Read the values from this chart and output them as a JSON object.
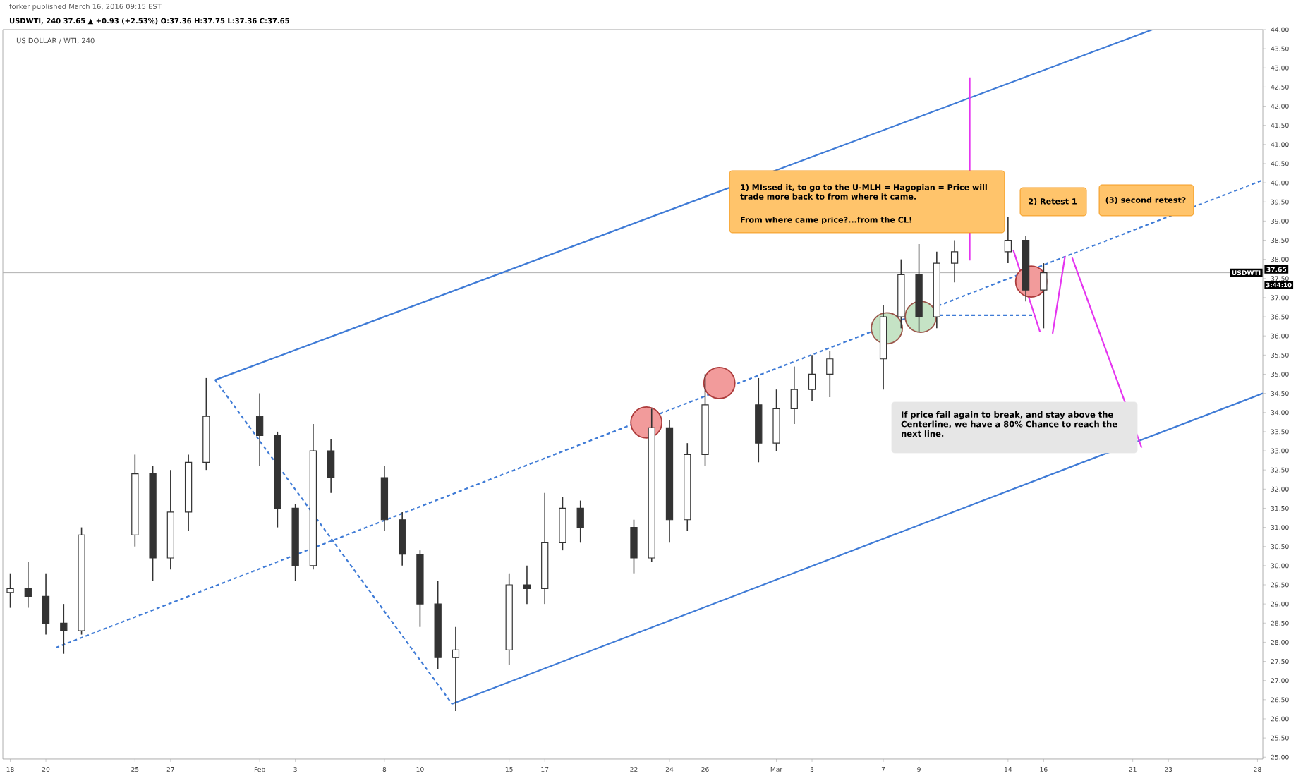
{
  "chart_data": {
    "type": "candlestick",
    "title": "US DOLLAR / WTI, 240",
    "subtitle": "USDWTI, 240 37.65 ▲ +0.93 (+2.53%) O:37.36 H:37.75 L:37.36 C:37.65",
    "annotations": [
      "forker published March 16, 2016 09:15 EST",
      "1) MIssed it, to go to the U-MLH = Hagopian = Price will trade more back to from where it came.",
      "From where came price?...from the CL!",
      "2) Retest 1",
      "(3) second retest?",
      "If price fail again to break, and stay above the Centerline, we have a  80% Chance to reach the next line.",
      "37.65",
      "3:44:10"
    ],
    "color": "#333333",
    "x": [
      "2016-01-18",
      "2016-01-19",
      "2016-01-20",
      "2016-01-21",
      "2016-01-22",
      "2016-01-25",
      "2016-01-26",
      "2016-01-27",
      "2016-01-28",
      "2016-01-29",
      "2016-02-01",
      "2016-02-02",
      "2016-02-03",
      "2016-02-04",
      "2016-02-05",
      "2016-02-08",
      "2016-02-09",
      "2016-02-10",
      "2016-02-11",
      "2016-02-12",
      "2016-02-15",
      "2016-02-16",
      "2016-02-17",
      "2016-02-18",
      "2016-02-19",
      "2016-02-22",
      "2016-02-23",
      "2016-02-24",
      "2016-02-25",
      "2016-02-26",
      "2016-02-29",
      "2016-03-01",
      "2016-03-02",
      "2016-03-03",
      "2016-03-04",
      "2016-03-07",
      "2016-03-08",
      "2016-03-09",
      "2016-03-10",
      "2016-03-11",
      "2016-03-14",
      "2016-03-15",
      "2016-03-16"
    ],
    "ohlc": [
      [
        29.3,
        29.8,
        28.9,
        29.4
      ],
      [
        29.4,
        30.1,
        28.9,
        29.2
      ],
      [
        29.2,
        29.8,
        28.2,
        28.5
      ],
      [
        28.5,
        29.0,
        27.7,
        28.3
      ],
      [
        28.3,
        31.0,
        28.2,
        30.8
      ],
      [
        30.8,
        32.9,
        30.5,
        32.4
      ],
      [
        32.4,
        32.6,
        29.6,
        30.2
      ],
      [
        30.2,
        32.5,
        29.9,
        31.4
      ],
      [
        31.4,
        32.9,
        30.9,
        32.7
      ],
      [
        32.7,
        34.9,
        32.5,
        33.9
      ],
      [
        33.9,
        34.5,
        32.6,
        33.4
      ],
      [
        33.4,
        33.5,
        31.0,
        31.5
      ],
      [
        31.5,
        31.6,
        29.6,
        30.0
      ],
      [
        30.0,
        33.7,
        29.9,
        33.0
      ],
      [
        33.0,
        33.3,
        31.9,
        32.3
      ],
      [
        32.3,
        32.6,
        30.9,
        31.2
      ],
      [
        31.2,
        31.4,
        30.0,
        30.3
      ],
      [
        30.3,
        30.4,
        28.4,
        29.0
      ],
      [
        29.0,
        29.6,
        27.3,
        27.6
      ],
      [
        27.6,
        28.4,
        26.2,
        27.8
      ],
      [
        27.8,
        29.8,
        27.4,
        29.5
      ],
      [
        29.5,
        30.0,
        29.0,
        29.4
      ],
      [
        29.4,
        31.9,
        29.0,
        30.6
      ],
      [
        30.6,
        31.8,
        30.4,
        31.5
      ],
      [
        31.5,
        31.7,
        30.6,
        31.0
      ],
      [
        31.0,
        31.2,
        29.8,
        30.2
      ],
      [
        30.2,
        34.1,
        30.1,
        33.6
      ],
      [
        33.6,
        33.8,
        30.6,
        31.2
      ],
      [
        31.2,
        33.2,
        30.9,
        32.9
      ],
      [
        32.9,
        35.0,
        32.6,
        34.2
      ],
      [
        34.2,
        34.9,
        32.7,
        33.2
      ],
      [
        33.2,
        34.6,
        33.0,
        34.1
      ],
      [
        34.1,
        35.2,
        33.7,
        34.6
      ],
      [
        34.6,
        35.5,
        34.3,
        35.0
      ],
      [
        35.0,
        35.6,
        34.4,
        35.4
      ],
      [
        35.4,
        36.8,
        34.6,
        36.5
      ],
      [
        36.5,
        38.0,
        36.2,
        37.6
      ],
      [
        37.6,
        38.4,
        36.1,
        36.5
      ],
      [
        36.5,
        38.2,
        36.2,
        37.9
      ],
      [
        37.9,
        38.5,
        37.4,
        38.2
      ],
      [
        38.2,
        39.1,
        37.9,
        38.5
      ],
      [
        38.5,
        38.6,
        36.9,
        37.2
      ],
      [
        37.2,
        37.9,
        36.2,
        37.65
      ]
    ],
    "series": [
      {
        "type": "line",
        "x": [
          "2016-01-29T12:00",
          "2016-03-22T02:24"
        ],
        "values": [
          34.85,
          44.0
        ],
        "color": "#3f7bd6",
        "line_style": "solid"
      },
      {
        "type": "line",
        "x": [
          "2016-02-11T19:12",
          "2016-03-28T07:12"
        ],
        "values": [
          26.39,
          34.5
        ],
        "color": "#3f7bd6",
        "line_style": "solid"
      },
      {
        "type": "line",
        "x": [
          "2016-01-20T13:30",
          "2016-03-28T07:12"
        ],
        "values": [
          27.86,
          40.07
        ],
        "color": "#3f7bd6",
        "line_style": "dashed"
      },
      {
        "type": "line",
        "x": [
          "2016-01-29T12:00",
          "2016-02-11T19:12"
        ],
        "values": [
          34.85,
          26.39
        ],
        "color": "#3f7bd6",
        "line_style": "dashed"
      },
      {
        "type": "line",
        "x": [
          "2016-03-10T04:00",
          "2016-03-15T12:00"
        ],
        "values": [
          36.54,
          36.54
        ],
        "color": "#3f7bd6",
        "line_style": "dashed"
      },
      {
        "type": "line",
        "x": [
          "2016-03-11T20:24",
          "2016-03-11T20:24"
        ],
        "values": [
          37.97,
          42.75
        ],
        "color": "#e535f0",
        "line_style": "solid"
      },
      {
        "type": "line",
        "x": [
          "2016-03-14T07:00",
          "2016-03-15T19:12"
        ],
        "values": [
          38.25,
          36.1
        ],
        "color": "#e535f0",
        "line_style": "solid"
      },
      {
        "type": "line",
        "x": [
          "2016-03-16T12:00",
          "2016-03-17T04:48"
        ],
        "values": [
          36.06,
          38.08
        ],
        "color": "#e535f0",
        "line_style": "solid"
      },
      {
        "type": "line",
        "x": [
          "2016-03-17T14:24",
          "2016-03-21T12:00"
        ],
        "values": [
          38.04,
          33.08
        ],
        "color": "#e535f0",
        "line_style": "solid"
      },
      {
        "type": "scatter",
        "x": [
          "2016-02-22T16:48",
          "2016-02-26T19:12",
          "2016-03-15T07:12"
        ],
        "values": [
          33.74,
          34.77,
          37.42
        ],
        "color": "#f29b9b",
        "marker": "circle"
      },
      {
        "type": "scatter",
        "x": [
          "2016-03-07T04:48",
          "2016-03-09T02:24"
        ],
        "values": [
          36.2,
          36.5
        ],
        "color": "#c5e3c5",
        "marker": "circle"
      }
    ],
    "ref_lines": [
      {
        "axis": "y",
        "value": 37.65,
        "label": "USDWTI",
        "color": "#b0b0b0"
      }
    ],
    "xlim": [
      "2016-01-17T14:00",
      "2016-03-28T07:12"
    ],
    "ylim": [
      24.95,
      44.0
    ],
    "xticks": [
      {
        "value": "2016-01-18",
        "label": "18"
      },
      {
        "value": "2016-01-20",
        "label": "20"
      },
      {
        "value": "2016-01-25",
        "label": "25"
      },
      {
        "value": "2016-01-27",
        "label": "27"
      },
      {
        "value": "2016-02-01",
        "label": "Feb"
      },
      {
        "value": "2016-02-03",
        "label": "3"
      },
      {
        "value": "2016-02-08",
        "label": "8"
      },
      {
        "value": "2016-02-10",
        "label": "10"
      },
      {
        "value": "2016-02-15",
        "label": "15"
      },
      {
        "value": "2016-02-17",
        "label": "17"
      },
      {
        "value": "2016-02-22",
        "label": "22"
      },
      {
        "value": "2016-02-24",
        "label": "24"
      },
      {
        "value": "2016-02-26",
        "label": "26"
      },
      {
        "value": "2016-03-01",
        "label": "Mar"
      },
      {
        "value": "2016-03-03",
        "label": "3"
      },
      {
        "value": "2016-03-07",
        "label": "7"
      },
      {
        "value": "2016-03-09",
        "label": "9"
      },
      {
        "value": "2016-03-14",
        "label": "14"
      },
      {
        "value": "2016-03-16",
        "label": "16"
      },
      {
        "value": "2016-03-21",
        "label": "21"
      },
      {
        "value": "2016-03-23",
        "label": "23"
      },
      {
        "value": "2016-03-28",
        "label": "28"
      }
    ],
    "yticks": [
      {
        "value": 25,
        "label": "25.00"
      },
      {
        "value": 25.5,
        "label": "25.50"
      },
      {
        "value": 26,
        "label": "26.00"
      },
      {
        "value": 26.5,
        "label": "26.50"
      },
      {
        "value": 27,
        "label": "27.00"
      },
      {
        "value": 27.5,
        "label": "27.50"
      },
      {
        "value": 28,
        "label": "28.00"
      },
      {
        "value": 28.5,
        "label": "28.50"
      },
      {
        "value": 29,
        "label": "29.00"
      },
      {
        "value": 29.5,
        "label": "29.50"
      },
      {
        "value": 30,
        "label": "30.00"
      },
      {
        "value": 30.5,
        "label": "30.50"
      },
      {
        "value": 31,
        "label": "31.00"
      },
      {
        "value": 31.5,
        "label": "31.50"
      },
      {
        "value": 32,
        "label": "32.00"
      },
      {
        "value": 32.5,
        "label": "32.50"
      },
      {
        "value": 33,
        "label": "33.00"
      },
      {
        "value": 33.5,
        "label": "33.50"
      },
      {
        "value": 34,
        "label": "34.00"
      },
      {
        "value": 34.5,
        "label": "34.50"
      },
      {
        "value": 35,
        "label": "35.00"
      },
      {
        "value": 35.5,
        "label": "35.50"
      },
      {
        "value": 36,
        "label": "36.00"
      },
      {
        "value": 36.5,
        "label": "36.50"
      },
      {
        "value": 37,
        "label": "37.00"
      },
      {
        "value": 37.5,
        "label": "37.50"
      },
      {
        "value": 38,
        "label": "38.00"
      },
      {
        "value": 38.5,
        "label": "38.50"
      },
      {
        "value": 39,
        "label": "39.00"
      },
      {
        "value": 39.5,
        "label": "39.50"
      },
      {
        "value": 40,
        "label": "40.00"
      },
      {
        "value": 40.5,
        "label": "40.50"
      },
      {
        "value": 41,
        "label": "41.00"
      },
      {
        "value": 41.5,
        "label": "41.50"
      },
      {
        "value": 42,
        "label": "42.00"
      },
      {
        "value": 42.5,
        "label": "42.50"
      },
      {
        "value": 43,
        "label": "43.00"
      },
      {
        "value": 43.5,
        "label": "43.50"
      },
      {
        "value": 44,
        "label": "44.00"
      }
    ]
  }
}
